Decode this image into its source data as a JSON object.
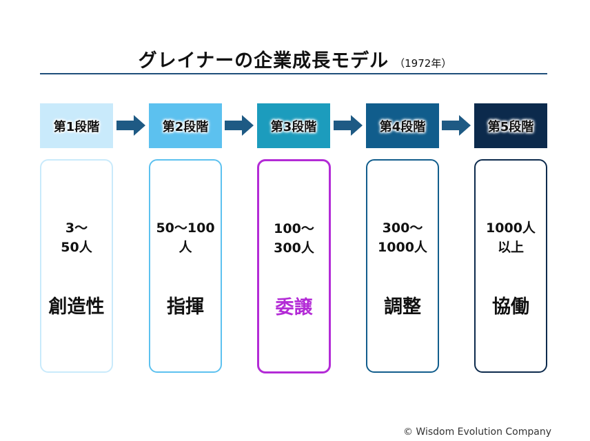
{
  "title": "グレイナーの企業成長モデル",
  "subtitle": "（1972年）",
  "colors": {
    "accent_rule": "#1e4e79",
    "arrow": "#1e5a84",
    "highlight": "#b32bd6"
  },
  "stages": [
    {
      "label": "第1段階",
      "range": "3〜\n50人",
      "keyword": "創造性",
      "header_color": "#c9eafb",
      "border_color": "#c9eafb",
      "highlight": false
    },
    {
      "label": "第2段階",
      "range": "50〜100\n人",
      "keyword": "指揮",
      "header_color": "#5cc1ef",
      "border_color": "#5cc1ef",
      "highlight": false
    },
    {
      "label": "第3段階",
      "range": "100〜\n300人",
      "keyword": "委譲",
      "header_color": "#1c9cbd",
      "border_color": "#b32bd6",
      "highlight": true
    },
    {
      "label": "第4段階",
      "range": "300〜\n1000人",
      "keyword": "調整",
      "header_color": "#115d8c",
      "border_color": "#115d8c",
      "highlight": false
    },
    {
      "label": "第5段階",
      "range": "1000人\n以上",
      "keyword": "協働",
      "header_color": "#0c2a4c",
      "border_color": "#0c2a4c",
      "highlight": false
    }
  ],
  "credit": "© Wisdom Evolution Company"
}
